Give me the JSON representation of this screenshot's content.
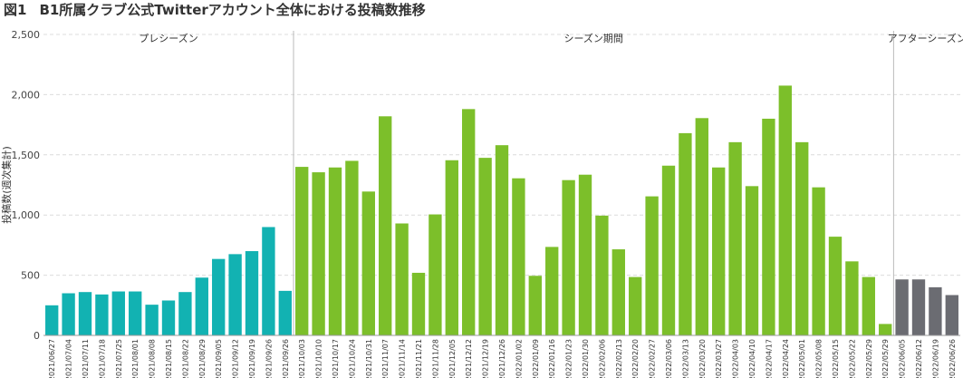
{
  "figure": {
    "number": "図1",
    "title": "B1所属クラブ公式Twitterアカウント全体における投稿数推移"
  },
  "chart_data": {
    "type": "bar",
    "ylabel": "投稿数(週次集計)",
    "xlabel": "",
    "ylim": [
      0,
      2500
    ],
    "yticks": [
      0,
      500,
      1000,
      1500,
      2000,
      2500
    ],
    "ytick_labels": [
      "0",
      "500",
      "1,000",
      "1,500",
      "2,000",
      "2,500"
    ],
    "grid": true,
    "categories": [
      "2021/06/27",
      "2021/07/04",
      "2021/07/11",
      "2021/07/18",
      "2021/07/25",
      "2021/08/01",
      "2021/08/08",
      "2021/08/15",
      "2021/08/22",
      "2021/08/29",
      "2021/09/05",
      "2021/09/12",
      "2021/09/19",
      "2021/09/26",
      "2021/09/26",
      "2021/10/03",
      "2021/10/10",
      "2021/10/17",
      "2021/10/24",
      "2021/10/31",
      "2021/11/07",
      "2021/11/14",
      "2021/11/21",
      "2021/11/28",
      "2021/12/05",
      "2021/12/12",
      "2021/12/19",
      "2021/12/26",
      "2022/01/02",
      "2022/01/09",
      "2022/01/16",
      "2022/01/23",
      "2022/01/30",
      "2022/02/06",
      "2022/02/13",
      "2022/02/20",
      "2022/02/27",
      "2022/03/06",
      "2022/03/13",
      "2022/03/20",
      "2022/03/27",
      "2022/04/03",
      "2022/04/10",
      "2022/04/17",
      "2022/04/24",
      "2022/05/01",
      "2022/05/08",
      "2022/05/15",
      "2022/05/22",
      "2022/05/29",
      "2022/05/29",
      "2022/06/05",
      "2022/06/12",
      "2022/06/19",
      "2022/06/26"
    ],
    "values": [
      250,
      350,
      360,
      340,
      365,
      365,
      255,
      290,
      360,
      480,
      635,
      675,
      700,
      900,
      370,
      1400,
      1355,
      1395,
      1450,
      1195,
      1820,
      930,
      520,
      1005,
      1455,
      1880,
      1475,
      1580,
      1305,
      495,
      735,
      1290,
      1335,
      995,
      715,
      485,
      1155,
      1410,
      1680,
      1805,
      1395,
      1605,
      1240,
      1800,
      2075,
      1605,
      1230,
      820,
      615,
      485,
      95,
      465,
      465,
      400,
      335
    ],
    "phases": [
      {
        "name": "プレシーズン",
        "start": 0,
        "end": 14,
        "color": "#12b2b2"
      },
      {
        "name": "シーズン期間",
        "start": 15,
        "end": 50,
        "color": "#7cbf2a"
      },
      {
        "name": "アフターシーズン",
        "start": 51,
        "end": 54,
        "color": "#6b6c72"
      }
    ]
  }
}
